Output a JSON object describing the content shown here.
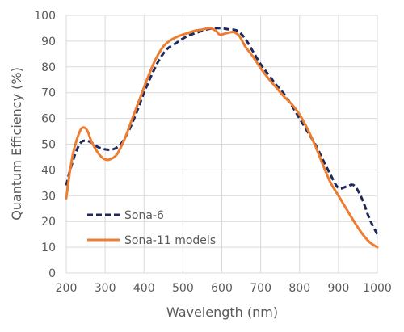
{
  "chart_data": {
    "type": "line",
    "title": "",
    "xlabel": "Wavelength (nm)",
    "ylabel": "Quantum Efficiency (%)",
    "xlim": [
      200,
      1000
    ],
    "ylim": [
      0,
      100
    ],
    "x_ticks": [
      200,
      300,
      400,
      500,
      600,
      700,
      800,
      900,
      1000
    ],
    "y_ticks": [
      0,
      10,
      20,
      30,
      40,
      50,
      60,
      70,
      80,
      90,
      100
    ],
    "grid": true,
    "legend_position": "bottom-left",
    "series": [
      {
        "name": "Sona-6",
        "color": "#1f2a5c",
        "style": "dashed",
        "x": [
          200,
          210,
          225,
          240,
          260,
          280,
          300,
          320,
          340,
          360,
          380,
          400,
          420,
          440,
          460,
          480,
          500,
          520,
          540,
          560,
          580,
          600,
          620,
          640,
          660,
          680,
          700,
          720,
          740,
          760,
          780,
          800,
          820,
          840,
          860,
          880,
          900,
          920,
          940,
          960,
          980,
          1000
        ],
        "y": [
          34,
          40,
          47,
          51,
          51,
          49,
          48,
          48,
          50,
          55,
          62,
          70,
          77,
          83,
          87,
          89,
          91,
          92.5,
          93.5,
          94.5,
          95,
          95,
          94.5,
          94,
          91,
          86,
          81,
          77,
          73,
          69.5,
          65,
          60,
          55,
          50,
          44,
          38,
          33,
          33.5,
          34,
          29,
          21,
          15
        ]
      },
      {
        "name": "Sona-11 models",
        "color": "#ed7d31",
        "style": "solid",
        "x": [
          200,
          210,
          220,
          235,
          245,
          255,
          265,
          280,
          295,
          310,
          330,
          350,
          370,
          390,
          410,
          430,
          450,
          470,
          490,
          510,
          530,
          550,
          570,
          585,
          595,
          610,
          630,
          645,
          660,
          680,
          700,
          720,
          740,
          760,
          780,
          800,
          820,
          840,
          860,
          880,
          900,
          920,
          940,
          960,
          980,
          1000
        ],
        "y": [
          29,
          40,
          48,
          55,
          56.5,
          55,
          51,
          47,
          44.5,
          44,
          46,
          52,
          60,
          68,
          76,
          83,
          88,
          90.5,
          92,
          93,
          94,
          94.5,
          95,
          94,
          92.5,
          93,
          93.5,
          92,
          88,
          84,
          79.5,
          75.5,
          72,
          68.5,
          65.5,
          61.5,
          56,
          49.5,
          42,
          35,
          30,
          25,
          20,
          15.5,
          12,
          10
        ]
      }
    ]
  }
}
